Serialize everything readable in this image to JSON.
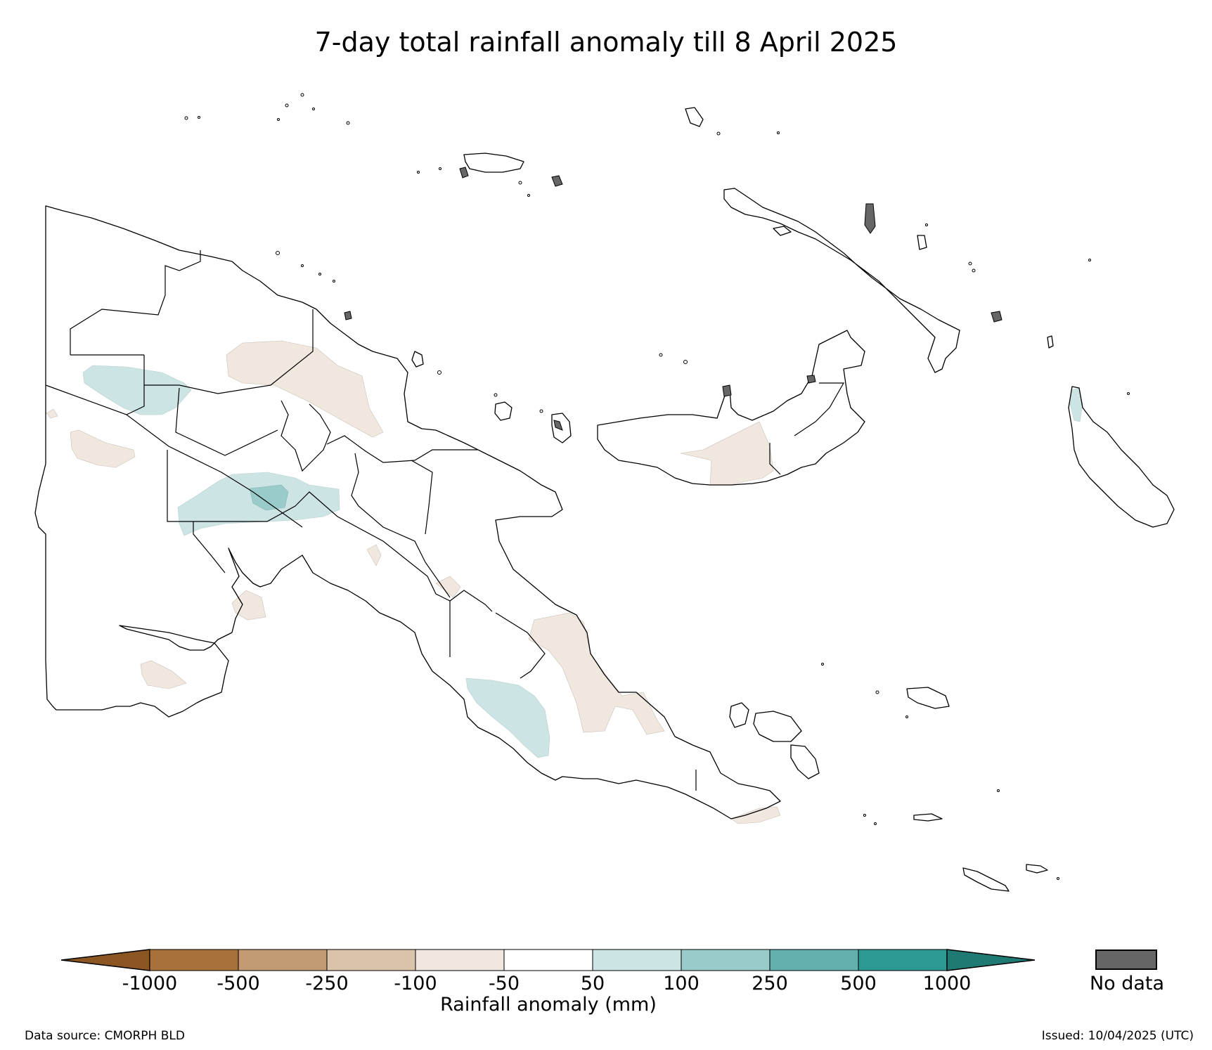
{
  "title": "7-day total rainfall anomaly till 8 April 2025",
  "colorbar": {
    "label": "Rainfall anomaly (mm)",
    "extend_low_color": "#8c5623",
    "extend_high_color": "#1f7a73",
    "bins": [
      {
        "color": "#a8713b"
      },
      {
        "color": "#c29a73"
      },
      {
        "color": "#dbc3aa"
      },
      {
        "color": "#f0e7df"
      },
      {
        "color": "#ffffff"
      },
      {
        "color": "#cce5e4"
      },
      {
        "color": "#99cbca"
      },
      {
        "color": "#62b1ae"
      },
      {
        "color": "#2e9893"
      }
    ],
    "ticks": [
      "-1000",
      "-500",
      "-250",
      "-100",
      "-50",
      "50",
      "100",
      "250",
      "500",
      "1000"
    ]
  },
  "no_data": {
    "label": "No data",
    "color": "#666666"
  },
  "legend_colors": {
    "dry_light": "#f0e7df",
    "wet_light": "#cce5e4",
    "wet_medium": "#99cbca"
  },
  "footer": {
    "source": "Data source: CMORPH BLD",
    "issued": "Issued: 10/04/2025 (UTC)"
  }
}
